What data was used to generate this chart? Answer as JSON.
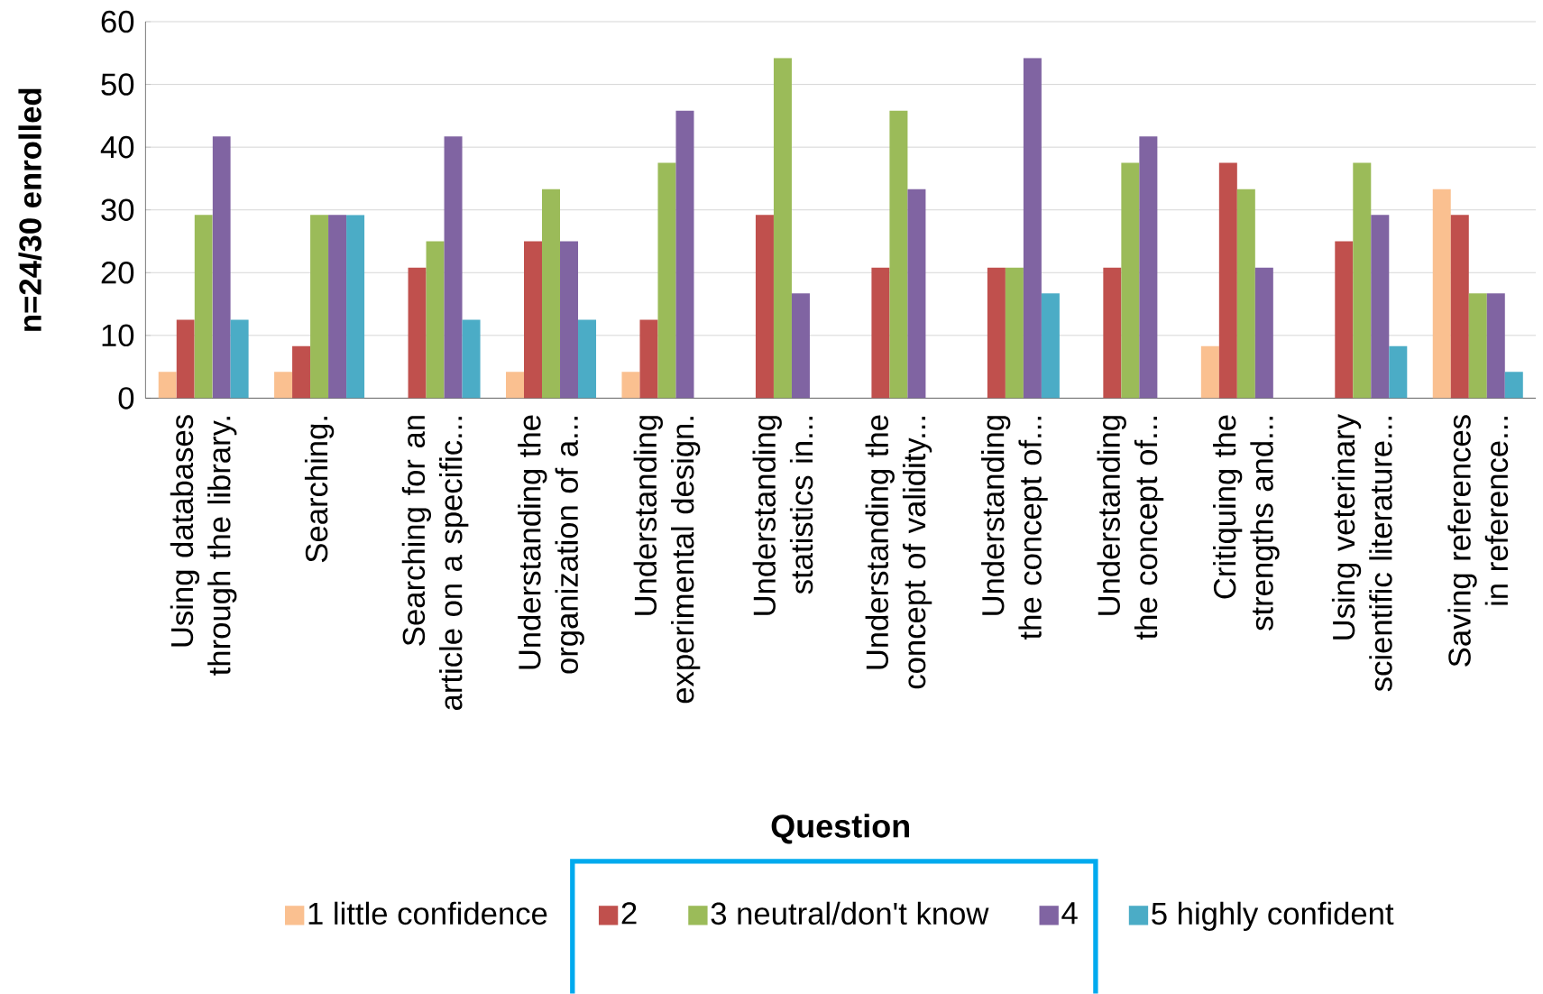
{
  "chart_data": {
    "type": "bar",
    "xlabel": "Question",
    "ylabel": "n=24/30 enrolled",
    "categories": [
      "Using databases through the library.",
      "Searching.",
      "Searching for an article on a specific...",
      "Understanding the organization of a...",
      "Understanding experimental design.",
      "Understanding statistics in...",
      "Understanding the concept of validity...",
      "Understanding the concept of...",
      "Understanding the concept of...",
      "Critiquing the strengths and...",
      "Using veterinary scientific literature...",
      "Saving references in reference..."
    ],
    "series": [
      {
        "name": "1 little confidence",
        "color": "#fac090",
        "values": [
          4.2,
          4.2,
          0,
          4.2,
          4.2,
          0,
          0,
          0,
          0,
          8.3,
          0,
          33.3
        ]
      },
      {
        "name": "2",
        "color": "#c0504d",
        "values": [
          12.5,
          8.3,
          20.8,
          25,
          12.5,
          29.2,
          20.8,
          20.8,
          20.8,
          37.5,
          25,
          29.2
        ]
      },
      {
        "name": "3 neutral/don't know",
        "color": "#9bbb59",
        "values": [
          29.2,
          29.2,
          25,
          33.3,
          37.5,
          54.2,
          45.8,
          20.8,
          37.5,
          33.3,
          37.5,
          16.7
        ]
      },
      {
        "name": "4",
        "color": "#8064a2",
        "values": [
          41.7,
          29.2,
          41.7,
          25,
          45.8,
          16.7,
          33.3,
          54.2,
          41.7,
          20.8,
          29.2,
          16.7
        ]
      },
      {
        "name": "5 highly confident",
        "color": "#4bacc6",
        "values": [
          12.5,
          29.2,
          12.5,
          12.5,
          0,
          0,
          0,
          16.7,
          0,
          0,
          8.3,
          4.2
        ]
      }
    ],
    "ylim": [
      0,
      60
    ],
    "yticks": [
      0,
      10,
      20,
      30,
      40,
      50,
      60
    ],
    "grid": "y",
    "legend": "bottom"
  }
}
